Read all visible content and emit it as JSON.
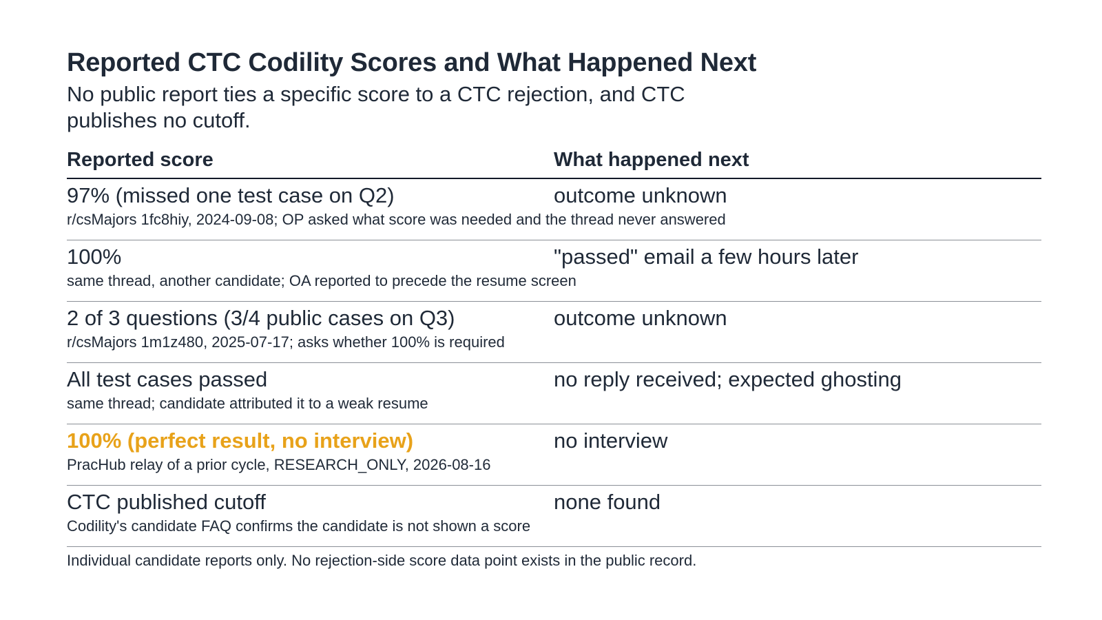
{
  "title": "Reported CTC Codility Scores and What Happened Next",
  "subtitle": "No public report ties a specific score to a CTC rejection, and CTC publishes no cutoff.",
  "table": {
    "headers": {
      "score": "Reported score",
      "next": "What happened next"
    },
    "rows": [
      {
        "score": "97% (missed one test case on Q2)",
        "next": "outcome unknown",
        "note": "r/csMajors 1fc8hiy, 2024-09-08; OP asked what score was needed and the thread never answered"
      },
      {
        "score": "100%",
        "next": "\"passed\" email a few hours later",
        "note": "same thread, another candidate; OA reported to precede the resume screen"
      },
      {
        "score": "2 of 3 questions (3/4 public cases on Q3)",
        "next": "outcome unknown",
        "note": "r/csMajors 1m1z480, 2025-07-17; asks whether 100% is required"
      },
      {
        "score": "All test cases passed",
        "next": "no reply received; expected ghosting",
        "note": "same thread; candidate attributed it to a weak resume"
      },
      {
        "score": "100% (perfect result, no interview)",
        "next": "no interview",
        "note": "PracHub relay of a prior cycle, RESEARCH_ONLY, 2026-08-16",
        "highlight": true
      },
      {
        "score": "CTC published cutoff",
        "next": "none found",
        "note": "Codility's candidate FAQ confirms the candidate is not shown a score"
      }
    ]
  },
  "footnote": "Individual candidate reports only. No rejection-side score data point exists in the public record.",
  "colors": {
    "text": "#1f2937",
    "highlight": "#e8a21a",
    "rule": "#8a8f96"
  }
}
